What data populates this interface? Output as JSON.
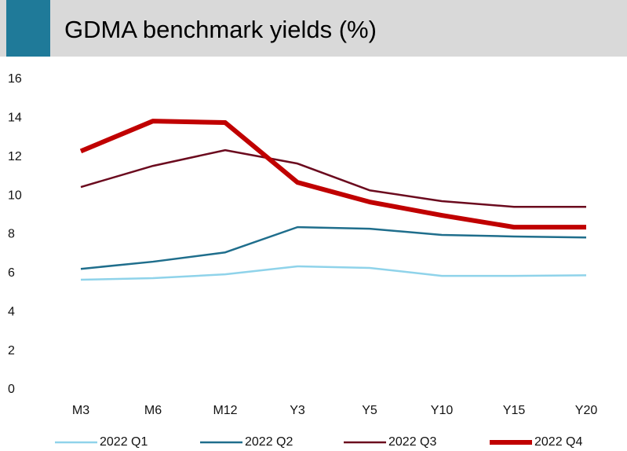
{
  "chart_data": {
    "type": "line",
    "title": "GDMA benchmark yields (%)",
    "categories": [
      "M3",
      "M6",
      "M12",
      "Y3",
      "Y5",
      "Y10",
      "Y15",
      "Y20"
    ],
    "series": [
      {
        "name": "2022 Q1",
        "color": "#8fd3ea",
        "linewidth": 2.5,
        "values": [
          5.67,
          5.75,
          5.95,
          6.36,
          6.28,
          5.87,
          5.87,
          5.9
        ]
      },
      {
        "name": "2022 Q2",
        "color": "#1f6e8c",
        "linewidth": 2.5,
        "values": [
          6.23,
          6.6,
          7.08,
          8.38,
          8.3,
          7.98,
          7.9,
          7.85
        ]
      },
      {
        "name": "2022 Q3",
        "color": "#6b0a1e",
        "linewidth": 2.5,
        "values": [
          10.45,
          11.54,
          12.35,
          11.66,
          10.28,
          9.72,
          9.43,
          9.43
        ]
      },
      {
        "name": "2022 Q4",
        "color": "#c00000",
        "linewidth": 6,
        "values": [
          12.3,
          13.85,
          13.77,
          10.69,
          9.68,
          8.99,
          8.38,
          8.38
        ]
      }
    ],
    "ylim": [
      0,
      16
    ],
    "yticks": [
      0,
      2,
      4,
      6,
      8,
      10,
      12,
      14,
      16
    ],
    "grid": false,
    "legend": "bottom"
  }
}
